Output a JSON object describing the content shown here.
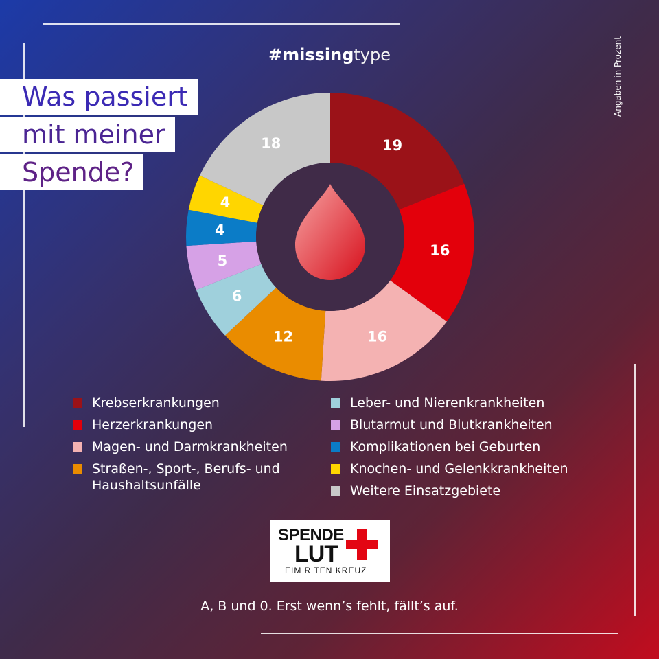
{
  "hashtag": {
    "bold": "#missing",
    "light": "type"
  },
  "side_note": "Angaben in Prozent",
  "title": {
    "line1": "Was passiert",
    "line2": "mit meiner",
    "line3": "Spende?"
  },
  "chart_data": {
    "type": "pie",
    "unit": "Angaben in Prozent",
    "categories": [
      "Krebserkrankungen",
      "Herzerkrankungen",
      "Magen- und Darmkrankheiten",
      "Straßen-, Sport-, Berufs- und Haushaltsunfälle",
      "Leber- und Nierenkrankheiten",
      "Blutarmut und Blutkrankheiten",
      "Komplikationen bei Geburten",
      "Knochen- und Gelenkkrankheiten",
      "Weitere Einsatzgebiete"
    ],
    "values": [
      19,
      16,
      16,
      12,
      6,
      5,
      4,
      4,
      18
    ],
    "colors": [
      "#9b1218",
      "#e3000b",
      "#f4b2b2",
      "#ea8c00",
      "#9fd0dc",
      "#d6a1e6",
      "#0b7cc7",
      "#ffd600",
      "#c8c8c8"
    ],
    "center_icon": "blood-drop-icon"
  },
  "legend": {
    "left": [
      {
        "label": "Krebserkrankungen",
        "color": "#9b1218"
      },
      {
        "label": "Herzerkrankungen",
        "color": "#e3000b"
      },
      {
        "label": "Magen- und Darmkrankheiten",
        "color": "#f4b2b2"
      },
      {
        "label": "Straßen-, Sport-, Berufs- und",
        "label2": "Haushaltsunfälle",
        "color": "#ea8c00"
      }
    ],
    "right": [
      {
        "label": "Leber- und Nierenkrankheiten",
        "color": "#9fd0dc"
      },
      {
        "label": "Blutarmut und Blutkrankheiten",
        "color": "#d6a1e6"
      },
      {
        "label": "Komplikationen bei Geburten",
        "color": "#0b7cc7"
      },
      {
        "label": "Knochen- und Gelenkkrankheiten",
        "color": "#ffd600"
      },
      {
        "label": "Weitere Einsatzgebiete",
        "color": "#c8c8c8"
      }
    ]
  },
  "logo": {
    "line1": "SPENDE",
    "line2": "LUT",
    "line3": "EIM R TEN KREUZ",
    "cross_color": "#e30613"
  },
  "tagline": "A, B und 0. Erst wenn’s fehlt, fällt’s auf."
}
